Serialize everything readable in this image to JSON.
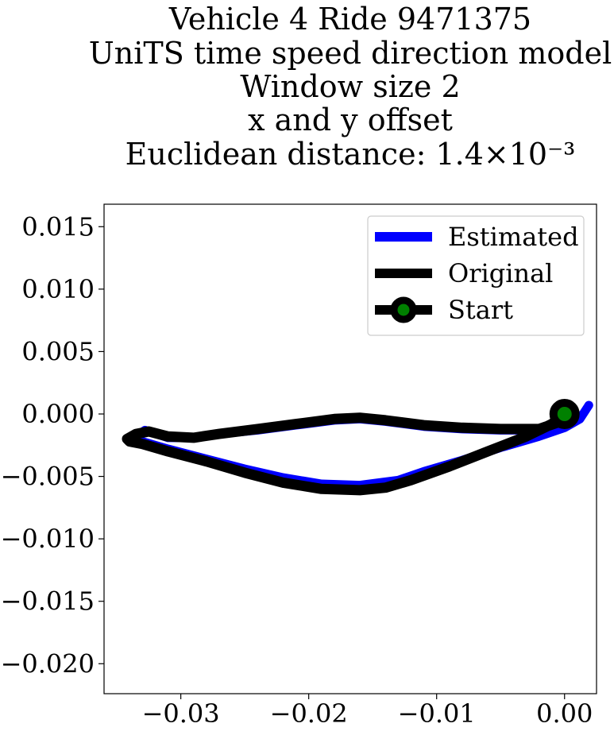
{
  "chart_data": {
    "type": "line",
    "title_lines": [
      "Vehicle 4 Ride 9471375",
      "UniTS time speed direction model",
      "Window size 2",
      "x and y offset",
      "Euclidean distance: 1.4×10⁻³"
    ],
    "xlabel": "",
    "ylabel": "",
    "xlim": [
      -0.036,
      0.0025
    ],
    "ylim": [
      -0.0224,
      0.0168
    ],
    "x_ticks": [
      -0.03,
      -0.02,
      -0.01,
      0.0
    ],
    "x_tick_labels": [
      "−0.03",
      "−0.02",
      "−0.01",
      "0.00"
    ],
    "y_ticks": [
      0.015,
      0.01,
      0.005,
      0.0,
      -0.005,
      -0.01,
      -0.015,
      -0.02
    ],
    "y_tick_labels": [
      "0.015",
      "0.010",
      "0.005",
      "0.000",
      "−0.005",
      "−0.010",
      "−0.015",
      "−0.020"
    ],
    "grid": false,
    "legend_position": "top-right",
    "series": [
      {
        "name": "Estimated",
        "color": "#0000ff",
        "points": [
          [
            0.0019,
            0.0007
          ],
          [
            0.0012,
            -0.0004
          ],
          [
            0.0,
            -0.0011
          ],
          [
            -0.002,
            -0.0018
          ],
          [
            -0.005,
            -0.0027
          ],
          [
            -0.008,
            -0.0037
          ],
          [
            -0.011,
            -0.0046
          ],
          [
            -0.013,
            -0.0053
          ],
          [
            -0.016,
            -0.0057
          ],
          [
            -0.019,
            -0.0056
          ],
          [
            -0.022,
            -0.0051
          ],
          [
            -0.025,
            -0.0044
          ],
          [
            -0.028,
            -0.0036
          ],
          [
            -0.031,
            -0.0028
          ],
          [
            -0.033,
            -0.0022
          ],
          [
            -0.0335,
            -0.0018
          ],
          [
            -0.0328,
            -0.0013
          ],
          [
            -0.0322,
            -0.0015
          ],
          [
            -0.031,
            -0.0019
          ],
          [
            -0.029,
            -0.0019
          ],
          [
            -0.027,
            -0.0016
          ],
          [
            -0.024,
            -0.0013
          ],
          [
            -0.021,
            -0.0009
          ],
          [
            -0.018,
            -0.0005
          ],
          [
            -0.016,
            -0.0004
          ],
          [
            -0.014,
            -0.0006
          ],
          [
            -0.011,
            -0.001
          ],
          [
            -0.008,
            -0.0012
          ],
          [
            -0.005,
            -0.0013
          ],
          [
            -0.002,
            -0.0013
          ],
          [
            0.0,
            -0.0009
          ],
          [
            0.001,
            -0.0003
          ]
        ]
      },
      {
        "name": "Original",
        "color": "#000000",
        "points": [
          [
            0.0,
            0.0
          ],
          [
            -0.001,
            -0.0008
          ],
          [
            -0.003,
            -0.0018
          ],
          [
            -0.006,
            -0.003
          ],
          [
            -0.009,
            -0.0042
          ],
          [
            -0.012,
            -0.0053
          ],
          [
            -0.014,
            -0.0059
          ],
          [
            -0.016,
            -0.0061
          ],
          [
            -0.019,
            -0.006
          ],
          [
            -0.022,
            -0.0055
          ],
          [
            -0.025,
            -0.0047
          ],
          [
            -0.028,
            -0.0038
          ],
          [
            -0.031,
            -0.003
          ],
          [
            -0.033,
            -0.0024
          ],
          [
            -0.034,
            -0.0022
          ],
          [
            -0.0342,
            -0.002
          ],
          [
            -0.0335,
            -0.0016
          ],
          [
            -0.0325,
            -0.0014
          ],
          [
            -0.031,
            -0.0018
          ],
          [
            -0.029,
            -0.0019
          ],
          [
            -0.027,
            -0.0016
          ],
          [
            -0.024,
            -0.0012
          ],
          [
            -0.021,
            -0.0008
          ],
          [
            -0.018,
            -0.0004
          ],
          [
            -0.016,
            -0.0003
          ],
          [
            -0.014,
            -0.0005
          ],
          [
            -0.011,
            -0.0009
          ],
          [
            -0.008,
            -0.0011
          ],
          [
            -0.005,
            -0.0012
          ],
          [
            -0.002,
            -0.0012
          ],
          [
            0.0,
            -0.0005
          ],
          [
            0.0004,
            0.0
          ]
        ]
      }
    ],
    "start_point": {
      "name": "Start",
      "x": 0.0,
      "y": 0.0,
      "marker_color": "#008000",
      "edge_color": "#000000"
    }
  }
}
